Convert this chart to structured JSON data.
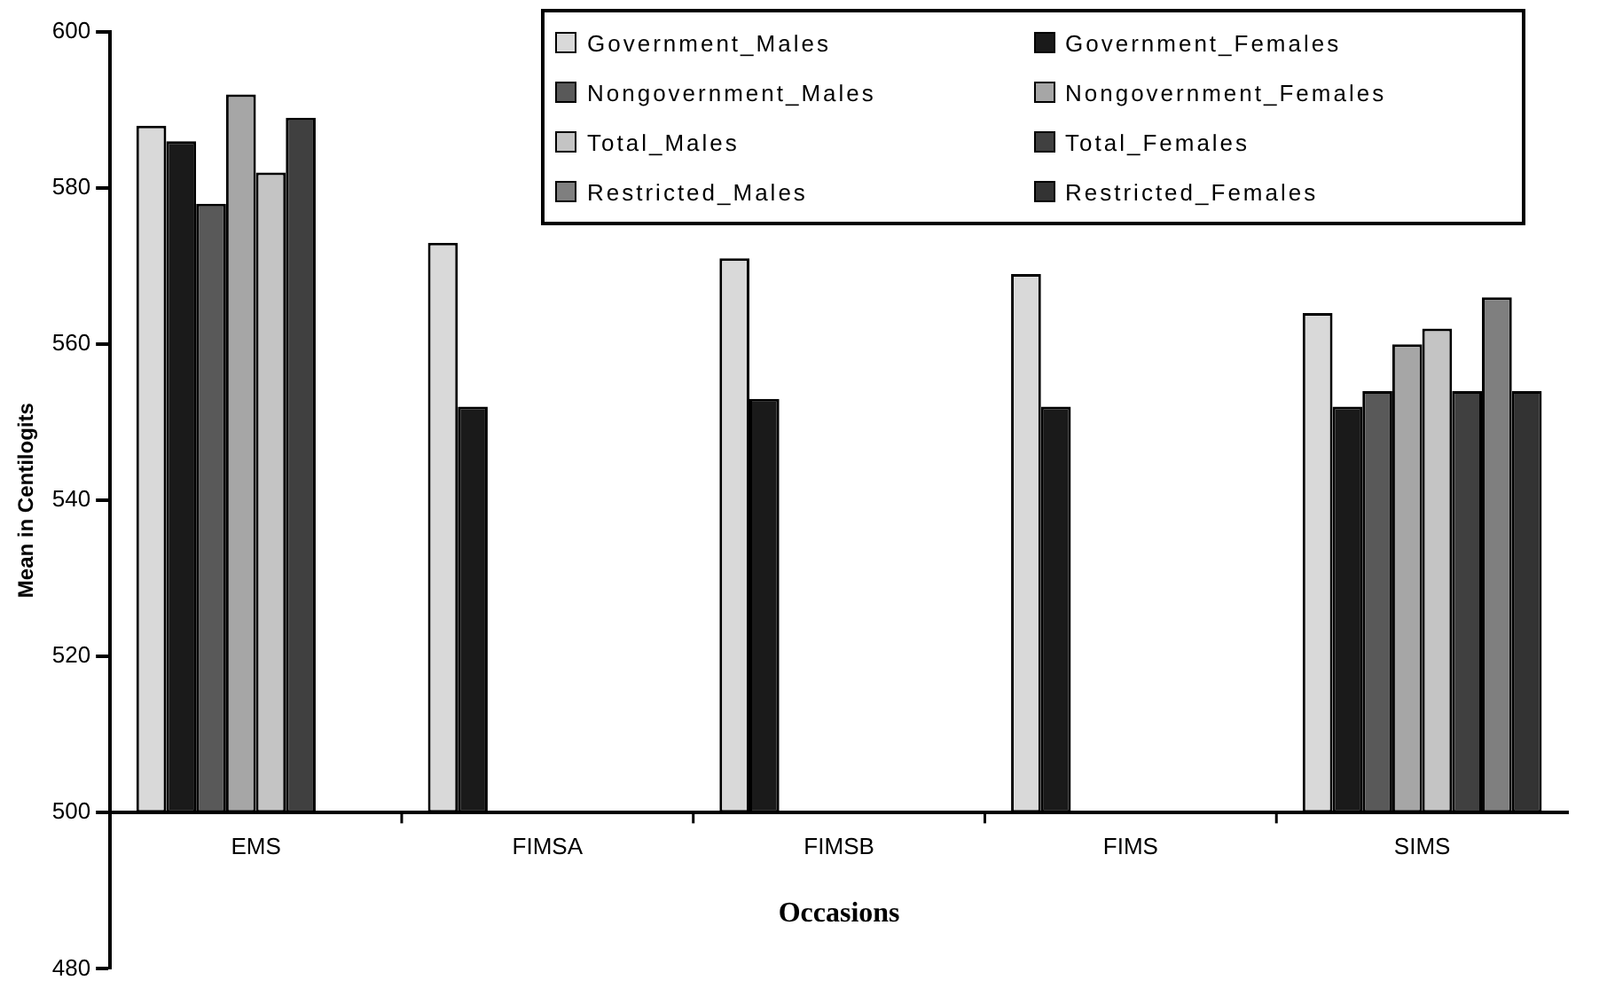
{
  "chart_data": {
    "type": "bar",
    "xlabel": "Occasions",
    "ylabel": "Mean in Centilogits",
    "categories": [
      "EMS",
      "FIMSA",
      "FIMSB",
      "FIMS",
      "SIMS"
    ],
    "series": [
      {
        "name": "Government_Males",
        "color": "#d9d9d9",
        "base": [
          500,
          500,
          500,
          500,
          500
        ],
        "values": [
          88,
          73,
          71,
          69,
          64
        ]
      },
      {
        "name": "Government_Females",
        "color": "#1a1a1a",
        "base": [
          500,
          500,
          500,
          500,
          500
        ],
        "values": [
          86,
          52,
          53,
          52,
          52
        ]
      },
      {
        "name": "Nongovernment_Males",
        "color": "#595959",
        "base": [
          500,
          null,
          null,
          null,
          500
        ],
        "values": [
          78,
          null,
          null,
          null,
          54
        ]
      },
      {
        "name": "Nongovernment_Females",
        "color": "#a6a6a6",
        "base": [
          500,
          null,
          null,
          null,
          500
        ],
        "values": [
          92,
          null,
          null,
          null,
          60
        ]
      },
      {
        "name": "Total_Males",
        "color": "#c4c4c4",
        "base": [
          500,
          null,
          null,
          null,
          500
        ],
        "values": [
          82,
          null,
          null,
          null,
          62
        ]
      },
      {
        "name": "Total_Females",
        "color": "#404040",
        "base": [
          500,
          null,
          null,
          null,
          500
        ],
        "values": [
          89,
          null,
          null,
          null,
          54
        ]
      },
      {
        "name": "Restricted_Males",
        "color": "#7f7f7f",
        "base": [
          null,
          null,
          null,
          null,
          500
        ],
        "values": [
          null,
          null,
          null,
          null,
          66
        ]
      },
      {
        "name": "Restricted_Females",
        "color": "#333333",
        "base": [
          null,
          null,
          null,
          null,
          500
        ],
        "values": [
          null,
          null,
          null,
          null,
          54
        ]
      }
    ],
    "ylim": [
      480,
      600
    ],
    "yticks": [
      480,
      500,
      520,
      540,
      560,
      580,
      600
    ],
    "grid": false,
    "legend": "top right"
  }
}
